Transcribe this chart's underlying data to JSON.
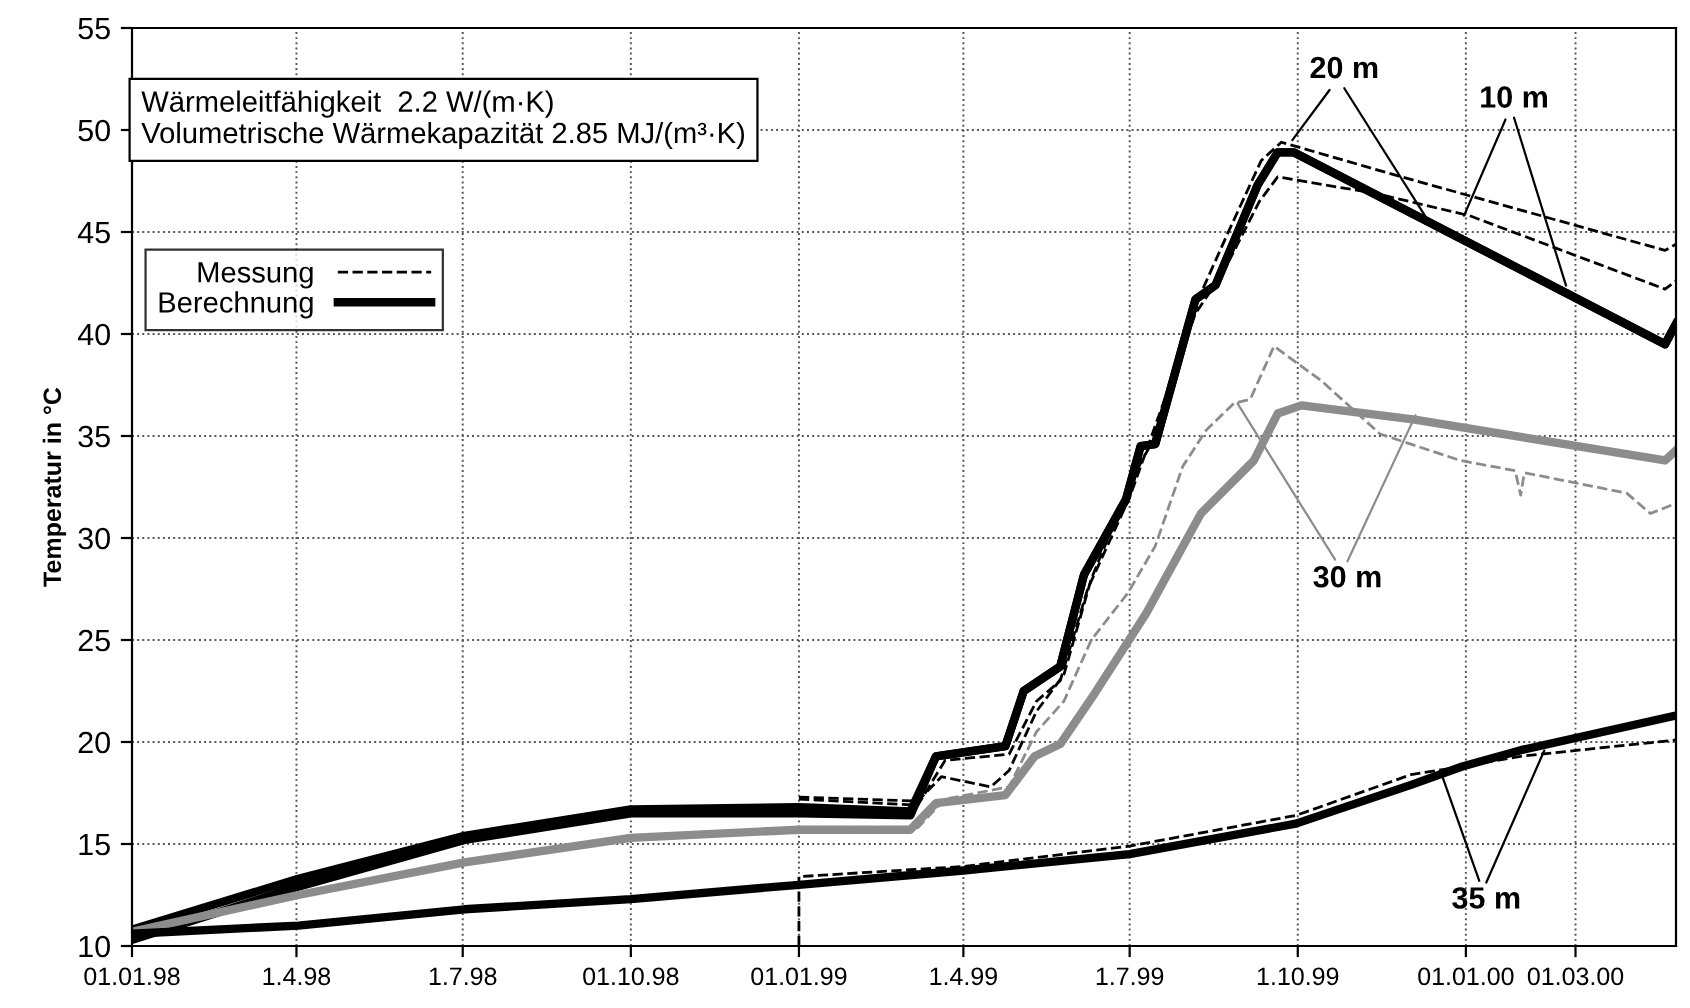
{
  "chart_data": {
    "type": "line",
    "ylabel": "Temperatur in °C",
    "xlim": [
      "1998-01-01",
      "2000-04-25"
    ],
    "ylim": [
      10,
      55
    ],
    "xticks": [
      {
        "value": "1998-01-01",
        "label": "01.01.98"
      },
      {
        "value": "1998-04-01",
        "label": "1.4.98"
      },
      {
        "value": "1998-07-01",
        "label": "1.7.98"
      },
      {
        "value": "1998-10-01",
        "label": "01.10.98"
      },
      {
        "value": "1999-01-01",
        "label": "01.01.99"
      },
      {
        "value": "1999-04-01",
        "label": "1.4.99"
      },
      {
        "value": "1999-07-01",
        "label": "1.7.99"
      },
      {
        "value": "1999-10-01",
        "label": "1.10.99"
      },
      {
        "value": "2000-01-01",
        "label": "01.01.00"
      },
      {
        "value": "2000-03-01",
        "label": "01.03.00"
      }
    ],
    "yticks": [
      10,
      15,
      20,
      25,
      30,
      35,
      40,
      45,
      50,
      55
    ],
    "grid": true,
    "legend": "top left",
    "series": [
      {
        "name": "Berechnung",
        "color": "#000000",
        "line_style": "solid",
        "x": [
          "1998-01-01",
          "1998-04-02",
          "1998-07-02",
          "1998-10-01",
          "1999-01-01",
          "1999-03-03",
          "1999-03-17",
          "1999-04-24",
          "1999-05-04",
          "1999-05-24",
          "1999-06-06",
          "1999-06-29",
          "1999-07-07",
          "1999-07-15",
          "1999-08-06",
          "1999-08-17",
          "1999-09-09",
          "1999-09-20",
          "1999-09-29",
          "2000-04-19",
          "2000-04-25"
        ],
        "values": [
          10.8,
          13.3,
          15.4,
          16.7,
          16.8,
          16.6,
          19.3,
          19.8,
          22.5,
          23.7,
          28.2,
          31.9,
          34.5,
          34.6,
          41.7,
          42.4,
          47.3,
          48.9,
          48.9,
          39.5,
          40.5
        ]
      },
      {
        "color": "#000000",
        "line_style": "solid",
        "x": [
          "1998-01-01",
          "1998-04-02",
          "1998-07-02",
          "1998-10-01",
          "1999-01-01",
          "1999-03-03",
          "1999-03-17",
          "1999-04-24",
          "1999-05-04",
          "1999-05-24",
          "1999-06-06",
          "1999-06-29",
          "1999-07-07",
          "1999-07-15",
          "1999-08-06",
          "1999-08-17",
          "1999-09-09",
          "1999-09-20",
          "1999-09-29",
          "2000-04-19",
          "2000-04-25"
        ],
        "values": [
          10.3,
          12.9,
          15.2,
          16.5,
          16.5,
          16.4,
          19.3,
          19.8,
          22.5,
          23.7,
          28.2,
          31.9,
          34.5,
          34.6,
          41.7,
          42.4,
          47.3,
          48.9,
          48.9,
          39.5,
          40.5
        ]
      },
      {
        "color": "#8c8c8c",
        "line_style": "solid",
        "x": [
          "1998-01-01",
          "1998-04-02",
          "1998-07-02",
          "1998-10-01",
          "1999-01-01",
          "1999-03-03",
          "1999-03-17",
          "1999-04-24",
          "1999-05-10",
          "1999-05-24",
          "1999-06-12",
          "1999-07-10",
          "1999-08-09",
          "1999-09-07",
          "1999-09-20",
          "1999-10-03",
          "1999-12-04",
          "2000-04-19",
          "2000-04-25"
        ],
        "values": [
          10.7,
          12.5,
          14.1,
          15.3,
          15.7,
          15.7,
          17.0,
          17.4,
          19.3,
          19.9,
          22.4,
          26.3,
          31.2,
          33.8,
          36.1,
          36.5,
          35.8,
          33.8,
          34.3
        ]
      },
      {
        "color": "#000000",
        "line_style": "solid",
        "x": [
          "1998-01-01",
          "1998-04-02",
          "1998-07-02",
          "1998-10-01",
          "1999-01-01",
          "1999-04-01",
          "1999-07-01",
          "1999-09-30",
          "1999-12-02",
          "1999-12-30",
          "2000-01-31",
          "2000-04-25"
        ],
        "values": [
          10.6,
          11.0,
          11.8,
          12.3,
          13.0,
          13.7,
          14.5,
          16.0,
          17.9,
          18.8,
          19.6,
          21.3
        ]
      },
      {
        "name": "Messung",
        "color": "#000000",
        "line_style": "dashed",
        "x": [
          "1999-01-01",
          "1999-03-07",
          "1999-03-22",
          "1999-04-26",
          "1999-05-11",
          "1999-05-24",
          "1999-06-08",
          "1999-07-01",
          "1999-07-15",
          "1999-08-06",
          "1999-08-21",
          "1999-09-10",
          "1999-09-20",
          "1999-11-12",
          "2000-01-03",
          "2000-04-19",
          "2000-04-25"
        ],
        "values": [
          17.2,
          16.9,
          19.1,
          19.4,
          22.0,
          23.0,
          27.5,
          32.0,
          35.5,
          41.0,
          43.0,
          46.5,
          47.7,
          46.9,
          45.8,
          42.2,
          42.6
        ]
      },
      {
        "color": "#000000",
        "line_style": "dashed",
        "x": [
          "1999-01-01",
          "1999-03-07",
          "1999-03-20",
          "1999-04-16",
          "1999-04-26",
          "1999-05-11",
          "1999-05-26",
          "1999-06-10",
          "1999-07-03",
          "1999-07-15",
          "1999-08-09",
          "1999-08-24",
          "1999-09-11",
          "1999-09-22",
          "1999-11-23",
          "2000-04-19",
          "2000-04-25"
        ],
        "values": [
          17.3,
          17.1,
          18.3,
          17.8,
          18.6,
          21.5,
          23.3,
          28.0,
          33.0,
          35.0,
          42.0,
          45.0,
          48.5,
          49.4,
          47.8,
          44.1,
          44.4
        ]
      },
      {
        "color": "#8c8c8c",
        "line_style": "dashed",
        "x": [
          "1999-01-01",
          "1999-03-07",
          "1999-03-22",
          "1999-04-26",
          "1999-05-11",
          "1999-05-26",
          "1999-06-10",
          "1999-06-30",
          "1999-07-15",
          "1999-07-30",
          "1999-08-12",
          "1999-08-27",
          "1999-09-05",
          "1999-09-18",
          "1999-10-14",
          "1999-11-15",
          "1999-12-29",
          "2000-01-28",
          "2000-01-31",
          "2000-02-02",
          "2000-03-29",
          "2000-04-11",
          "2000-04-25"
        ],
        "values": [
          15.6,
          15.8,
          17.2,
          17.8,
          20.5,
          22.0,
          25.0,
          27.3,
          29.6,
          33.5,
          35.3,
          36.6,
          36.8,
          39.4,
          37.7,
          35.1,
          33.8,
          33.3,
          32.1,
          33.2,
          32.2,
          31.2,
          31.7
        ]
      },
      {
        "color": "#000000",
        "line_style": "dashed",
        "x": [
          "1999-01-01",
          "1999-01-01",
          "1999-04-01",
          "1999-07-01",
          "1999-09-30",
          "1999-12-02",
          "1999-12-30",
          "2000-01-31",
          "2000-04-25"
        ],
        "values": [
          10.0,
          13.4,
          13.9,
          14.9,
          16.4,
          18.4,
          18.8,
          19.3,
          20.1
        ]
      }
    ],
    "annotations": [
      "Wärmeleitfähigkeit  2.2 W/(m·K)\nVolumetrische Wärmekapazität 2.85 MJ/(m³·K)",
      {
        "text": "20 m",
        "x": "1999-09-28",
        "y": 49.5
      },
      {
        "text": "10 m",
        "x": "1999-12-31",
        "y": 45.8
      },
      {
        "text": "30 m",
        "x": "1999-08-29",
        "y": 36.6
      },
      {
        "text": "35 m",
        "x": "1999-12-18",
        "y": 18.6
      }
    ]
  }
}
